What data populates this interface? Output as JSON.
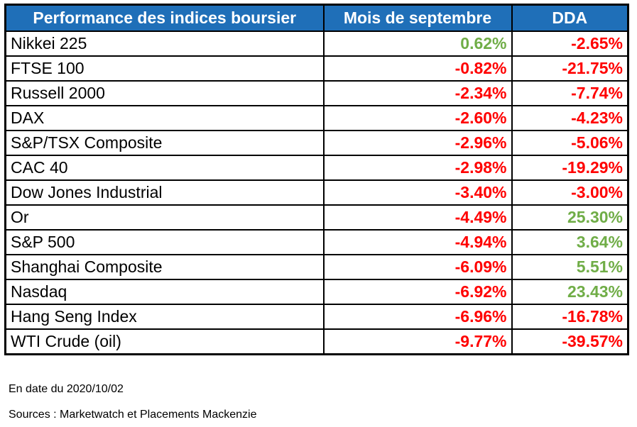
{
  "table": {
    "headers": {
      "name": "Performance des indices boursier",
      "month": "Mois de septembre",
      "ytd": "DDA"
    },
    "rows": [
      {
        "name": "Nikkei 225",
        "month": "0.62%",
        "ytd": "-2.65%"
      },
      {
        "name": "FTSE 100",
        "month": "-0.82%",
        "ytd": "-21.75%"
      },
      {
        "name": "Russell 2000",
        "month": "-2.34%",
        "ytd": "-7.74%"
      },
      {
        "name": "DAX",
        "month": "-2.60%",
        "ytd": "-4.23%"
      },
      {
        "name": "S&P/TSX Composite",
        "month": "-2.96%",
        "ytd": "-5.06%"
      },
      {
        "name": "CAC 40",
        "month": "-2.98%",
        "ytd": "-19.29%"
      },
      {
        "name": "Dow Jones Industrial",
        "month": "-3.40%",
        "ytd": "-3.00%"
      },
      {
        "name": "Or",
        "month": "-4.49%",
        "ytd": "25.30%"
      },
      {
        "name": "S&P 500",
        "month": "-4.94%",
        "ytd": "3.64%"
      },
      {
        "name": "Shanghai Composite",
        "month": "-6.09%",
        "ytd": "5.51%"
      },
      {
        "name": "Nasdaq",
        "month": "-6.92%",
        "ytd": "23.43%"
      },
      {
        "name": "Hang Seng Index",
        "month": "-6.96%",
        "ytd": "-16.78%"
      },
      {
        "name": "WTI Crude (oil)",
        "month": "-9.77%",
        "ytd": "-39.57%"
      }
    ]
  },
  "footer": {
    "date": "En date du 2020/10/02",
    "sources": "Sources : Marketwatch et Placements Mackenzie"
  },
  "colors": {
    "header_bg": "#1f6fb8",
    "negative": "#ff0000",
    "positive": "#70ad47"
  }
}
